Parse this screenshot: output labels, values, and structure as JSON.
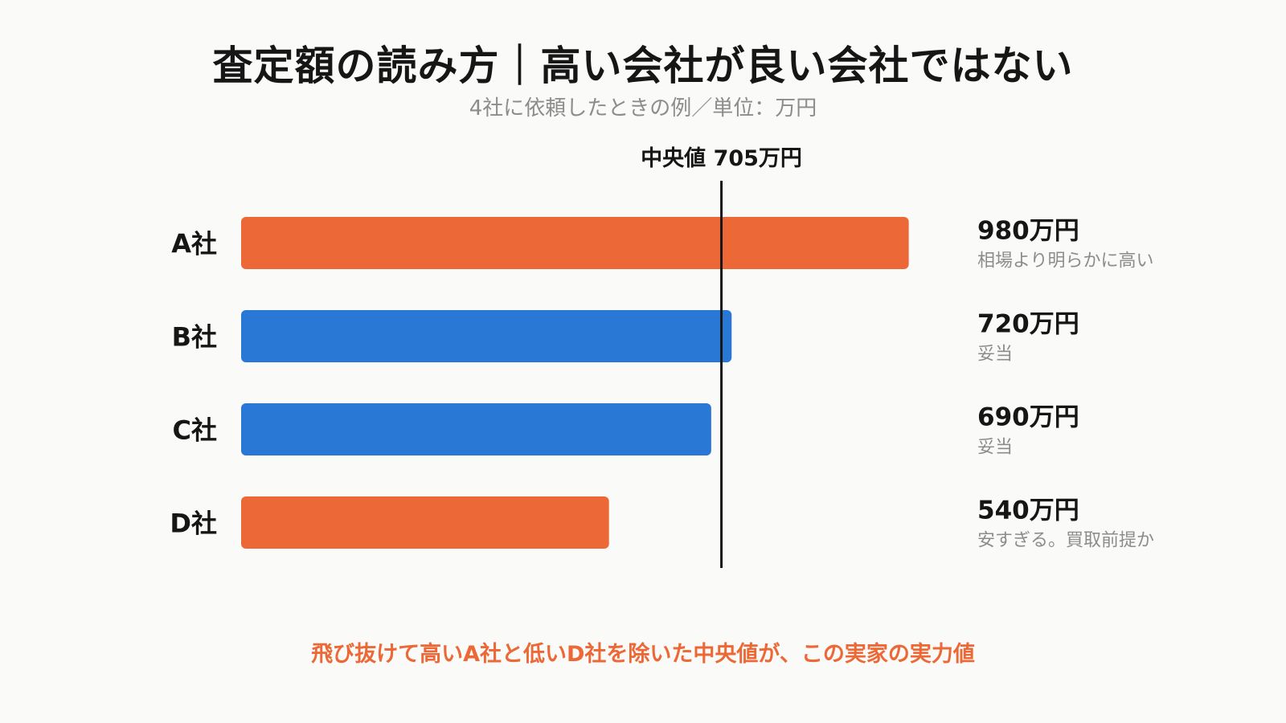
{
  "title": "査定額の読み方｜高い会社が良い会社ではない",
  "subtitle": "4社に依頼したときの例／単位：万円",
  "chart_data": {
    "type": "bar",
    "orientation": "horizontal",
    "categories": [
      "A社",
      "B社",
      "C社",
      "D社"
    ],
    "values": [
      980,
      720,
      690,
      540
    ],
    "value_labels": [
      "980万円",
      "720万円",
      "690万円",
      "540万円"
    ],
    "notes": [
      "相場より明らかに高い",
      "妥当",
      "妥当",
      "安すぎる。買取前提か"
    ],
    "bar_colors": [
      "#ec6836",
      "#2a78d6",
      "#2a78d6",
      "#ec6836"
    ],
    "reference_line": {
      "value": 705,
      "label": "中央値 705万円"
    },
    "xlim": [
      0,
      1000
    ],
    "grid": false,
    "legend": "none"
  },
  "footnote": "飛び抜けて高いA社と低いD社を除いた中央値が、この実家の実力値",
  "colors": {
    "accent": "#ec6836",
    "normal": "#2a78d6",
    "text": "#161616",
    "muted": "#8c8c8c",
    "background": "#fafaf8"
  }
}
